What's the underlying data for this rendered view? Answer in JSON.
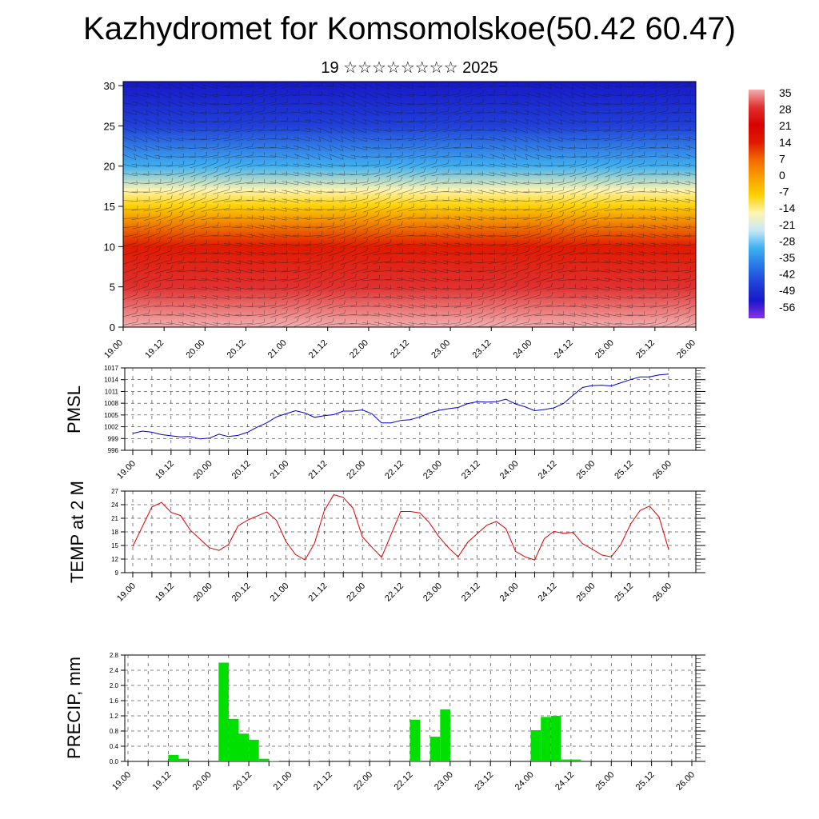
{
  "header": {
    "title": "Kazhydromet for Komsomolskoe(50.42 60.47)",
    "subtitle": "19 ☆☆☆☆☆☆☆☆ 2025"
  },
  "time_ticks": [
    "19.00",
    "19.12",
    "20.00",
    "20.12",
    "21.00",
    "21.12",
    "22.00",
    "22.12",
    "23.00",
    "23.12",
    "24.00",
    "24.12",
    "25.00",
    "25.12",
    "26.00"
  ],
  "chart_data": [
    {
      "type": "heatmap",
      "title": "",
      "xlabel": "",
      "ylabel": "",
      "x_ticks": [
        "19.00",
        "19.12",
        "20.00",
        "20.12",
        "21.00",
        "21.12",
        "22.00",
        "22.12",
        "23.00",
        "23.12",
        "24.00",
        "24.12",
        "25.00",
        "25.12",
        "26.00"
      ],
      "y_ticks": [
        0,
        5,
        10,
        15,
        20,
        25,
        30
      ],
      "ylim": [
        0,
        30.5
      ],
      "colorbar_labels": [
        "35",
        "28",
        "21",
        "14",
        "7",
        "0",
        "-7",
        "-14",
        "-21",
        "-28",
        "-35",
        "-42",
        "-49",
        "-56"
      ],
      "colorbar_stops": [
        "#f2b0b0",
        "#e03030",
        "#d80000",
        "#e01a00",
        "#f26a00",
        "#f8a000",
        "#fdd000",
        "#fff5b0",
        "#c8e8f8",
        "#40b0f0",
        "#2878e8",
        "#2040d8",
        "#1818c8",
        "#8a30e8"
      ],
      "temperature_by_level": [
        {
          "level": 0,
          "value": 30
        },
        {
          "level": 5,
          "value": 21
        },
        {
          "level": 10,
          "value": 8
        },
        {
          "level": 15,
          "value": -8
        },
        {
          "level": 17,
          "value": -16
        },
        {
          "level": 20,
          "value": -30
        },
        {
          "level": 25,
          "value": -45
        },
        {
          "level": 30.5,
          "value": -54
        }
      ],
      "overlay": "wind barbs"
    },
    {
      "type": "line",
      "title": "",
      "xlabel": "",
      "ylabel": "PMSL",
      "ylim": [
        996,
        1017
      ],
      "y_ticks": [
        996,
        999,
        1002,
        1005,
        1008,
        1011,
        1014,
        1017
      ],
      "grid": true,
      "color": "#0000cc",
      "x": [
        0,
        3,
        6,
        9,
        12,
        15,
        18,
        21,
        24,
        27,
        30,
        33,
        36,
        39,
        42,
        45,
        48,
        51,
        54,
        57,
        60,
        63,
        66,
        69,
        72,
        75,
        78,
        81,
        84,
        87,
        90,
        93,
        96,
        99,
        102,
        105,
        108,
        111,
        114,
        117,
        120,
        123,
        126,
        129,
        132,
        135,
        138,
        141,
        144,
        147,
        150,
        153,
        156,
        159,
        162,
        165,
        168
      ],
      "values": [
        1000.3,
        1000.9,
        1000.6,
        1000.0,
        999.7,
        999.4,
        999.5,
        998.9,
        999.1,
        1000.1,
        999.5,
        999.8,
        1000.6,
        1001.9,
        1003.0,
        1004.5,
        1005.3,
        1006.1,
        1005.5,
        1004.4,
        1004.8,
        1005.1,
        1006.0,
        1006.0,
        1006.3,
        1005.3,
        1003.0,
        1003.0,
        1003.6,
        1003.8,
        1004.5,
        1005.5,
        1006.2,
        1006.6,
        1006.9,
        1007.9,
        1008.4,
        1008.3,
        1008.4,
        1009.0,
        1007.8,
        1007.1,
        1006.1,
        1006.4,
        1006.8,
        1007.9,
        1010.0,
        1012.0,
        1012.5,
        1012.6,
        1012.4,
        1013.2,
        1014.0,
        1014.7,
        1014.7,
        1015.2,
        1015.4
      ]
    },
    {
      "type": "line",
      "title": "",
      "xlabel": "",
      "ylabel": "TEMP at 2 M",
      "ylim": [
        9,
        27
      ],
      "y_ticks": [
        9,
        12,
        15,
        18,
        21,
        24,
        27
      ],
      "grid": true,
      "color": "#dd0000",
      "x": [
        0,
        6,
        9,
        12,
        15,
        18,
        24,
        27,
        30,
        33,
        36,
        42,
        45,
        48,
        51,
        54,
        57,
        60,
        63,
        66,
        69,
        72,
        75,
        78,
        84,
        87,
        90,
        93,
        96,
        99,
        102,
        105,
        108,
        111,
        114,
        117,
        120,
        123,
        126,
        129,
        132,
        135,
        138,
        141,
        144,
        147,
        150,
        153,
        156,
        159,
        162,
        165,
        168
      ],
      "values": [
        14.8,
        23.5,
        24.5,
        22.3,
        21.6,
        18.4,
        14.5,
        13.9,
        15.2,
        19.3,
        20.6,
        22.4,
        20.6,
        15.9,
        13.0,
        11.8,
        15.5,
        22.6,
        26.2,
        25.6,
        23.3,
        16.9,
        14.6,
        12.4,
        22.5,
        22.5,
        22.2,
        20.0,
        16.9,
        14.5,
        12.5,
        15.7,
        17.6,
        19.5,
        20.3,
        18.7,
        13.7,
        12.5,
        11.8,
        16.5,
        18.1,
        17.7,
        17.9,
        15.4,
        14.2,
        12.9,
        12.5,
        15.2,
        19.6,
        22.7,
        23.7,
        21.3,
        14.1
      ]
    },
    {
      "type": "bar",
      "title": "",
      "xlabel": "",
      "ylabel": "PRECIP, mm",
      "ylim": [
        0,
        2.8
      ],
      "y_ticks": [
        0.0,
        0.4,
        0.8,
        1.2,
        1.6,
        2.0,
        2.4,
        2.8
      ],
      "y_tick_labels": [
        "0.0",
        "0.4",
        "0.8",
        "1.2",
        "1.6",
        "2.0",
        "2.4",
        "2.8"
      ],
      "grid": true,
      "color": "#00e000",
      "bar_hours": 3,
      "x": [
        12,
        15,
        27,
        30,
        33,
        36,
        39,
        42,
        54,
        78,
        81,
        84,
        90,
        93,
        120,
        123,
        126,
        129,
        132,
        135,
        138,
        141,
        144,
        147,
        150
      ],
      "values": [
        0.17,
        0.07,
        2.6,
        1.12,
        0.73,
        0.57,
        0.07,
        0.01,
        0.01,
        0.02,
        0.02,
        1.1,
        0.65,
        1.37,
        0.82,
        1.17,
        1.2,
        0.05,
        0.05,
        0.0,
        0.0,
        0.0,
        0.0,
        0.0,
        0.0
      ]
    }
  ]
}
